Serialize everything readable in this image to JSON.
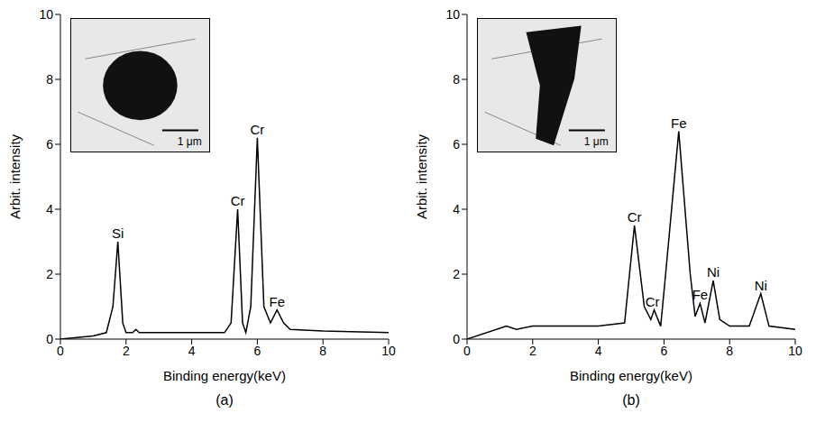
{
  "chart_data": [
    {
      "type": "line",
      "title": "(a)",
      "x_label": "Binding energy(keV)",
      "y_label": "Arbit. intensity",
      "x": [
        0,
        0.5,
        1.0,
        1.4,
        1.6,
        1.75,
        1.9,
        2.0,
        2.2,
        2.3,
        2.4,
        3.0,
        4.0,
        5.0,
        5.2,
        5.4,
        5.55,
        5.65,
        5.8,
        6.0,
        6.2,
        6.4,
        6.6,
        6.8,
        7.0,
        8.0,
        10.0
      ],
      "values": [
        0,
        0.05,
        0.1,
        0.2,
        1.0,
        3.0,
        0.5,
        0.2,
        0.2,
        0.3,
        0.2,
        0.2,
        0.2,
        0.2,
        0.5,
        4.0,
        0.5,
        0.2,
        1.0,
        6.2,
        1.0,
        0.5,
        0.9,
        0.5,
        0.3,
        0.25,
        0.2
      ],
      "color": "#000000",
      "xlim": [
        0,
        10
      ],
      "ylim": [
        0,
        10
      ],
      "xticks": [
        0,
        2,
        4,
        6,
        8,
        10
      ],
      "yticks": [
        0,
        2,
        4,
        6,
        8,
        10
      ],
      "grid": false,
      "annotations": [
        {
          "text": "Si",
          "x": 1.75,
          "y": 3.0
        },
        {
          "text": "Cr",
          "x": 5.4,
          "y": 4.0
        },
        {
          "text": "Cr",
          "x": 6.0,
          "y": 6.2
        },
        {
          "text": "Fe",
          "x": 6.6,
          "y": 0.9
        }
      ],
      "inset_label": "1 μm"
    },
    {
      "type": "line",
      "title": "(b)",
      "x_label": "Binding energy(keV)",
      "y_label": "Arbit. intensity",
      "x": [
        0,
        1.2,
        1.5,
        2.0,
        4.0,
        4.8,
        5.1,
        5.4,
        5.6,
        5.7,
        5.9,
        6.05,
        6.45,
        6.8,
        6.95,
        7.1,
        7.25,
        7.5,
        7.7,
        8.0,
        8.6,
        8.95,
        9.2,
        10.0
      ],
      "values": [
        0,
        0.4,
        0.3,
        0.4,
        0.4,
        0.5,
        3.5,
        1.0,
        0.6,
        0.9,
        0.4,
        2.0,
        6.4,
        2.0,
        0.7,
        1.1,
        0.5,
        1.8,
        0.6,
        0.4,
        0.4,
        1.4,
        0.4,
        0.3
      ],
      "color": "#000000",
      "xlim": [
        0,
        10
      ],
      "ylim": [
        0,
        10
      ],
      "xticks": [
        0,
        2,
        4,
        6,
        8,
        10
      ],
      "yticks": [
        0,
        2,
        4,
        6,
        8,
        10
      ],
      "grid": false,
      "annotations": [
        {
          "text": "Cr",
          "x": 5.1,
          "y": 3.5
        },
        {
          "text": "Cr",
          "x": 5.65,
          "y": 0.9
        },
        {
          "text": "Fe",
          "x": 6.45,
          "y": 6.4
        },
        {
          "text": "Fe",
          "x": 7.1,
          "y": 1.1
        },
        {
          "text": "Ni",
          "x": 7.5,
          "y": 1.8
        },
        {
          "text": "Ni",
          "x": 8.95,
          "y": 1.4
        }
      ],
      "inset_label": "1 μm"
    }
  ]
}
